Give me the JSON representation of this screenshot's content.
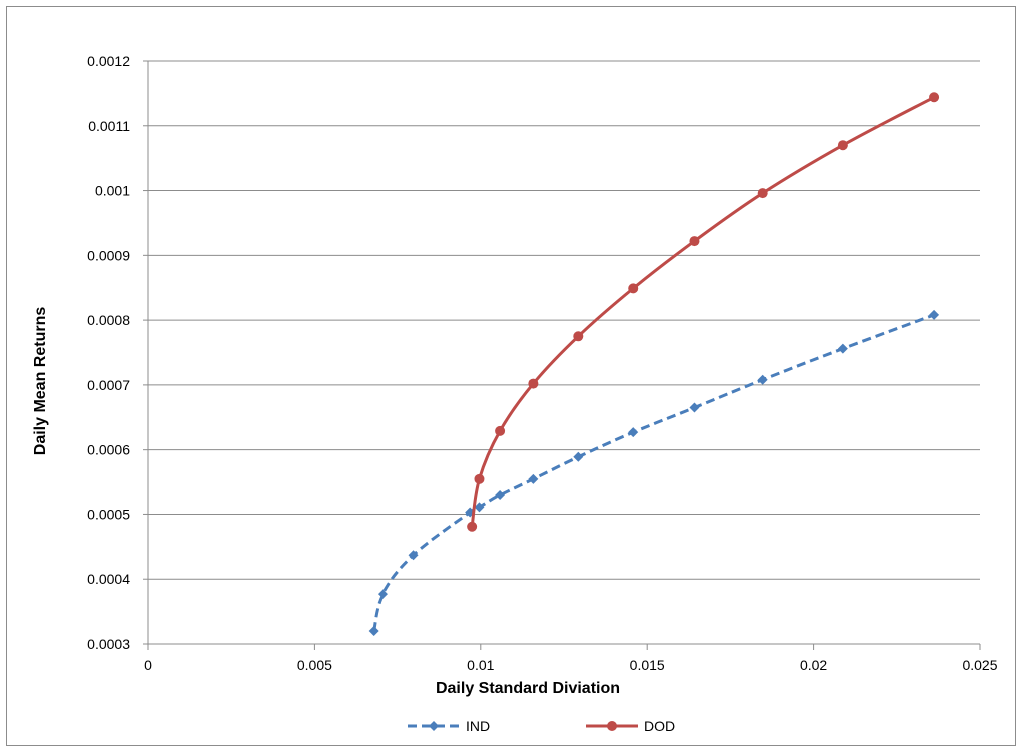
{
  "chart_data": {
    "type": "line",
    "title": "",
    "xlabel": "Daily Standard Diviation",
    "ylabel": "Daily  Mean  Returns",
    "xlim": [
      0,
      0.025
    ],
    "ylim": [
      0.0003,
      0.0012
    ],
    "x_ticks": [
      "0",
      "0.005",
      "0.01",
      "0.015",
      "0.02",
      "0.025"
    ],
    "y_ticks": [
      "0.0003",
      "0.0004",
      "0.0005",
      "0.0006",
      "0.0007",
      "0.0008",
      "0.0009",
      "0.001",
      "0.0011",
      "0.0012"
    ],
    "grid": "horizontal",
    "legend_position": "bottom",
    "series": [
      {
        "name": "IND",
        "color": "#4a7ebb",
        "line_style": "dashed",
        "marker": "diamond",
        "x": [
          0.00678,
          0.00706,
          0.00798,
          0.00968,
          0.00996,
          0.01058,
          0.01158,
          0.01293,
          0.01458,
          0.01642,
          0.01847,
          0.02088,
          0.02362
        ],
        "y": [
          0.00032,
          0.000377,
          0.000437,
          0.000503,
          0.000511,
          0.00053,
          0.000555,
          0.000589,
          0.000627,
          0.000665,
          0.000708,
          0.000756,
          0.000808
        ]
      },
      {
        "name": "DOD",
        "color": "#be4b48",
        "line_style": "solid",
        "marker": "circle",
        "x": [
          0.00974,
          0.00996,
          0.01058,
          0.01158,
          0.01293,
          0.01458,
          0.01642,
          0.01847,
          0.02088,
          0.02362
        ],
        "y": [
          0.000481,
          0.000555,
          0.000629,
          0.000702,
          0.000775,
          0.000849,
          0.000922,
          0.000996,
          0.00107,
          0.001144
        ]
      }
    ]
  }
}
